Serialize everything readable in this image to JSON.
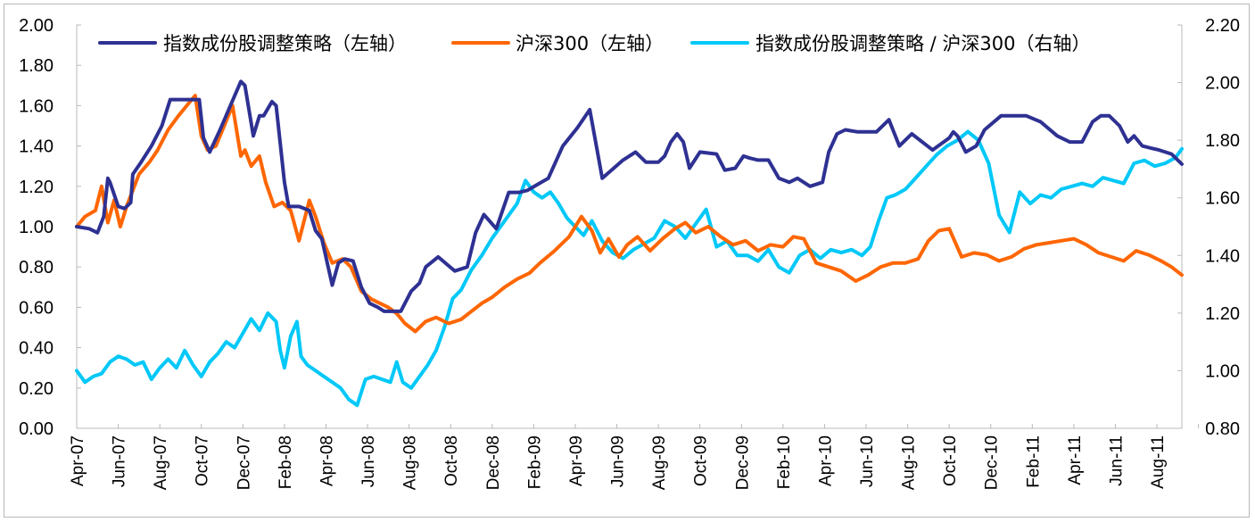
{
  "chart_data": {
    "type": "line",
    "title": "",
    "xlabel": "",
    "ylabel": "",
    "y2label": "",
    "legend_position": "top",
    "grid": false,
    "ylim": [
      0.0,
      2.0
    ],
    "y2lim": [
      0.8,
      2.2
    ],
    "yticks": [
      "0.00",
      "0.20",
      "0.40",
      "0.60",
      "0.80",
      "1.00",
      "1.20",
      "1.40",
      "1.60",
      "1.80",
      "2.00"
    ],
    "y2ticks": [
      "0.80",
      "1.00",
      "1.20",
      "1.40",
      "1.60",
      "1.80",
      "2.00",
      "2.20"
    ],
    "x_range_months": [
      0,
      53.2
    ],
    "x_ticks": [
      "Apr-07",
      "Jun-07",
      "Aug-07",
      "Oct-07",
      "Dec-07",
      "Feb-08",
      "Apr-08",
      "Jun-08",
      "Aug-08",
      "Oct-08",
      "Dec-08",
      "Feb-09",
      "Apr-09",
      "Jun-09",
      "Aug-09",
      "Oct-09",
      "Dec-09",
      "Feb-10",
      "Apr-10",
      "Jun-10",
      "Aug-10",
      "Oct-10",
      "Dec-10",
      "Feb-11",
      "Apr-11",
      "Jun-11",
      "Aug-11"
    ],
    "series": [
      {
        "name": "指数成份股调整策略（左轴）",
        "axis": "left",
        "color": "#2e3192",
        "x": [
          0,
          0.6,
          1.0,
          1.3,
          1.5,
          1.6,
          2.0,
          2.3,
          2.6,
          2.7,
          3.1,
          3.6,
          4.1,
          4.5,
          5.1,
          5.9,
          6.1,
          6.4,
          6.9,
          7.4,
          7.9,
          8.1,
          8.5,
          8.8,
          9.0,
          9.4,
          9.6,
          10.0,
          10.2,
          10.7,
          11.2,
          11.5,
          11.8,
          12.3,
          12.6,
          12.9,
          13.3,
          13.7,
          14.1,
          14.5,
          14.8,
          15.2,
          15.6,
          16.1,
          16.5,
          16.8,
          17.4,
          18.2,
          18.8,
          19.2,
          19.6,
          20.2,
          20.8,
          21.3,
          21.7,
          22.2,
          22.7,
          23.4,
          24.1,
          24.7,
          25.3,
          26.3,
          26.9,
          27.4,
          27.7,
          28.0,
          28.3,
          28.6,
          28.9,
          29.2,
          29.5,
          30.0,
          30.8,
          31.2,
          31.7,
          32.1,
          32.4,
          32.8,
          33.0,
          33.3,
          33.8,
          34.3,
          34.7,
          35.3,
          35.9,
          36.2,
          36.6,
          37.0,
          37.6,
          38.1,
          38.5,
          39.1,
          39.6,
          40.2,
          40.7,
          41.2,
          42.0,
          42.2,
          42.4,
          42.8,
          43.3,
          43.7,
          44.5,
          45.3,
          45.7,
          46.4,
          47.2,
          47.8,
          48.4,
          48.9,
          49.3,
          49.7,
          50.2,
          50.6,
          50.9,
          51.3,
          51.7,
          52.1,
          52.7,
          53.2
        ],
        "values": [
          1.0,
          0.99,
          0.97,
          1.05,
          1.24,
          1.22,
          1.1,
          1.09,
          1.12,
          1.26,
          1.32,
          1.4,
          1.5,
          1.63,
          1.63,
          1.63,
          1.44,
          1.37,
          1.48,
          1.6,
          1.72,
          1.7,
          1.45,
          1.55,
          1.55,
          1.62,
          1.6,
          1.22,
          1.1,
          1.1,
          1.08,
          0.98,
          0.94,
          0.71,
          0.82,
          0.84,
          0.83,
          0.7,
          0.62,
          0.6,
          0.58,
          0.58,
          0.58,
          0.68,
          0.72,
          0.8,
          0.85,
          0.78,
          0.8,
          0.97,
          1.06,
          0.99,
          1.17,
          1.17,
          1.18,
          1.21,
          1.24,
          1.4,
          1.49,
          1.58,
          1.24,
          1.33,
          1.37,
          1.32,
          1.32,
          1.32,
          1.35,
          1.42,
          1.46,
          1.42,
          1.29,
          1.37,
          1.36,
          1.28,
          1.29,
          1.35,
          1.34,
          1.33,
          1.33,
          1.33,
          1.24,
          1.22,
          1.24,
          1.2,
          1.22,
          1.37,
          1.46,
          1.48,
          1.47,
          1.47,
          1.47,
          1.53,
          1.4,
          1.46,
          1.42,
          1.38,
          1.44,
          1.47,
          1.45,
          1.37,
          1.4,
          1.48,
          1.55,
          1.55,
          1.55,
          1.52,
          1.45,
          1.42,
          1.42,
          1.52,
          1.55,
          1.55,
          1.5,
          1.42,
          1.45,
          1.4,
          1.39,
          1.38,
          1.36,
          1.31
        ]
      },
      {
        "name": "沪深300（左轴）",
        "axis": "left",
        "color": "#ff6600",
        "x": [
          0,
          0.4,
          0.9,
          1.2,
          1.5,
          1.8,
          2.1,
          2.4,
          2.7,
          3.0,
          3.5,
          3.9,
          4.4,
          4.9,
          5.3,
          5.7,
          6.0,
          6.3,
          6.7,
          7.1,
          7.5,
          7.9,
          8.1,
          8.4,
          8.8,
          9.1,
          9.5,
          9.9,
          10.3,
          10.7,
          11.2,
          11.5,
          11.9,
          12.3,
          12.8,
          13.2,
          13.7,
          14.2,
          14.6,
          15.0,
          15.4,
          15.8,
          16.3,
          16.8,
          17.3,
          17.9,
          18.5,
          19.0,
          19.5,
          20.0,
          20.6,
          21.2,
          21.8,
          22.3,
          23.0,
          23.7,
          24.3,
          24.8,
          25.2,
          25.6,
          26.1,
          26.5,
          27.0,
          27.6,
          28.2,
          28.8,
          29.3,
          29.8,
          30.4,
          31.0,
          31.6,
          32.2,
          32.8,
          33.4,
          34.0,
          34.5,
          35.0,
          35.6,
          36.2,
          36.8,
          37.5,
          38.1,
          38.7,
          39.3,
          39.9,
          40.5,
          41.0,
          41.5,
          42.0,
          42.6,
          43.2,
          43.8,
          44.4,
          45.0,
          45.6,
          46.2,
          46.8,
          47.4,
          48.0,
          48.6,
          49.2,
          49.8,
          50.4,
          51.0,
          51.6,
          52.2,
          52.7,
          53.2
        ],
        "values": [
          1.0,
          1.05,
          1.08,
          1.2,
          1.02,
          1.13,
          1.0,
          1.1,
          1.18,
          1.26,
          1.32,
          1.38,
          1.48,
          1.55,
          1.6,
          1.65,
          1.45,
          1.38,
          1.4,
          1.5,
          1.6,
          1.35,
          1.38,
          1.3,
          1.35,
          1.22,
          1.1,
          1.12,
          1.08,
          0.93,
          1.13,
          1.05,
          0.92,
          0.82,
          0.84,
          0.8,
          0.68,
          0.64,
          0.62,
          0.6,
          0.57,
          0.52,
          0.48,
          0.53,
          0.55,
          0.52,
          0.54,
          0.58,
          0.62,
          0.65,
          0.7,
          0.74,
          0.77,
          0.82,
          0.88,
          0.95,
          1.05,
          0.98,
          0.87,
          0.94,
          0.85,
          0.91,
          0.95,
          0.88,
          0.94,
          0.99,
          1.02,
          0.97,
          1.0,
          0.95,
          0.91,
          0.93,
          0.88,
          0.91,
          0.9,
          0.95,
          0.94,
          0.82,
          0.8,
          0.78,
          0.73,
          0.76,
          0.8,
          0.82,
          0.82,
          0.84,
          0.93,
          0.98,
          0.99,
          0.85,
          0.87,
          0.86,
          0.83,
          0.85,
          0.89,
          0.91,
          0.92,
          0.93,
          0.94,
          0.91,
          0.87,
          0.85,
          0.83,
          0.88,
          0.86,
          0.83,
          0.8,
          0.76
        ]
      },
      {
        "name": "指数成份股调整策略 / 沪深300（右轴）",
        "axis": "right",
        "color": "#00c8f8",
        "x": [
          0,
          0.4,
          0.8,
          1.2,
          1.6,
          2.0,
          2.4,
          2.8,
          3.2,
          3.6,
          4.0,
          4.4,
          4.8,
          5.2,
          5.6,
          6.0,
          6.4,
          6.8,
          7.2,
          7.6,
          8.0,
          8.4,
          8.8,
          9.2,
          9.6,
          9.8,
          10.0,
          10.3,
          10.6,
          10.8,
          11.1,
          11.5,
          11.9,
          12.3,
          12.7,
          13.1,
          13.5,
          13.9,
          14.3,
          14.7,
          15.1,
          15.4,
          15.7,
          16.1,
          16.5,
          16.9,
          17.3,
          17.7,
          18.1,
          18.5,
          19.0,
          19.5,
          20.0,
          20.4,
          20.8,
          21.2,
          21.6,
          22.0,
          22.4,
          22.8,
          23.2,
          23.6,
          24.0,
          24.4,
          24.8,
          25.3,
          25.8,
          26.3,
          26.8,
          27.3,
          27.8,
          28.3,
          28.8,
          29.3,
          29.8,
          30.3,
          30.8,
          31.3,
          31.8,
          32.3,
          32.8,
          33.3,
          33.8,
          34.3,
          34.8,
          35.3,
          35.8,
          36.3,
          36.8,
          37.3,
          37.8,
          38.2,
          38.6,
          39.0,
          39.4,
          39.9,
          40.4,
          40.9,
          41.4,
          41.9,
          42.4,
          42.9,
          43.4,
          43.9,
          44.4,
          44.9,
          45.4,
          45.9,
          46.4,
          46.9,
          47.4,
          47.9,
          48.4,
          48.9,
          49.4,
          49.9,
          50.4,
          50.9,
          51.4,
          51.9,
          52.4,
          52.9,
          53.2
        ],
        "values": [
          1.0,
          0.96,
          0.98,
          0.99,
          1.03,
          1.05,
          1.04,
          1.02,
          1.03,
          0.97,
          1.01,
          1.04,
          1.01,
          1.07,
          1.02,
          0.98,
          1.03,
          1.06,
          1.1,
          1.08,
          1.13,
          1.18,
          1.14,
          1.2,
          1.17,
          1.07,
          1.01,
          1.12,
          1.17,
          1.05,
          1.02,
          1.0,
          0.98,
          0.96,
          0.94,
          0.9,
          0.88,
          0.97,
          0.98,
          0.97,
          0.96,
          1.03,
          0.96,
          0.94,
          0.98,
          1.02,
          1.07,
          1.15,
          1.25,
          1.28,
          1.35,
          1.4,
          1.46,
          1.5,
          1.54,
          1.58,
          1.66,
          1.62,
          1.6,
          1.62,
          1.58,
          1.53,
          1.5,
          1.47,
          1.52,
          1.45,
          1.41,
          1.39,
          1.42,
          1.44,
          1.46,
          1.52,
          1.5,
          1.46,
          1.51,
          1.56,
          1.43,
          1.45,
          1.4,
          1.4,
          1.38,
          1.42,
          1.36,
          1.34,
          1.4,
          1.42,
          1.39,
          1.42,
          1.41,
          1.42,
          1.4,
          1.43,
          1.52,
          1.6,
          1.61,
          1.63,
          1.67,
          1.71,
          1.75,
          1.78,
          1.8,
          1.83,
          1.8,
          1.72,
          1.54,
          1.48,
          1.62,
          1.58,
          1.61,
          1.6,
          1.63,
          1.64,
          1.65,
          1.64,
          1.67,
          1.66,
          1.65,
          1.72,
          1.73,
          1.71,
          1.72,
          1.74,
          1.77
        ]
      }
    ]
  }
}
